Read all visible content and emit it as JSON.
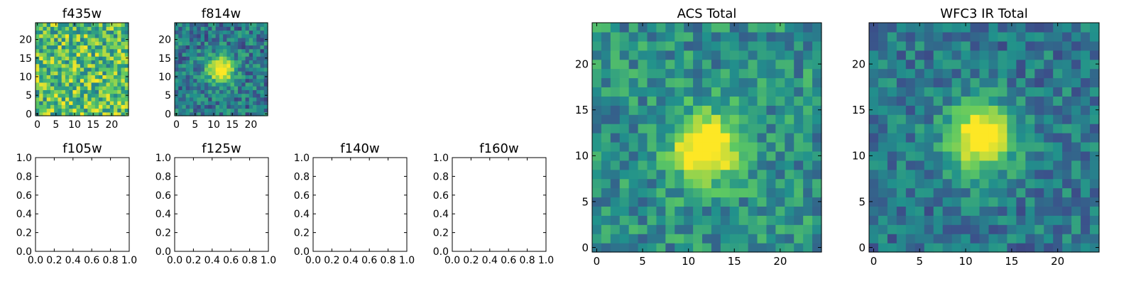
{
  "figure": {
    "colormap": "viridis",
    "colormap_stops": [
      "#440154",
      "#3b528b",
      "#21918c",
      "#5ec962",
      "#fde725"
    ]
  },
  "chart_data": [
    {
      "type": "heatmap",
      "title": "f435w",
      "grid_size": 25,
      "source_center": null,
      "source_peak": 0,
      "background_level": 0.7,
      "noise_level": 0.3,
      "xlim": [
        -0.5,
        24.5
      ],
      "ylim": [
        -0.5,
        24.5
      ],
      "xticks": [
        0,
        5,
        10,
        15,
        20
      ],
      "yticks": [
        0,
        5,
        10,
        15,
        20
      ],
      "xtick_labels": [
        "0",
        "5",
        "10",
        "15",
        "20"
      ],
      "ytick_labels": [
        "0",
        "5",
        "10",
        "15",
        "20"
      ]
    },
    {
      "type": "heatmap",
      "title": "f814w",
      "grid_size": 25,
      "source_center": [
        12,
        12
      ],
      "source_peak": 0.95,
      "background_level": 0.4,
      "noise_level": 0.22,
      "xlim": [
        -0.5,
        24.5
      ],
      "ylim": [
        -0.5,
        24.5
      ],
      "xticks": [
        0,
        5,
        10,
        15,
        20
      ],
      "yticks": [
        0,
        5,
        10,
        15,
        20
      ],
      "xtick_labels": [
        "0",
        "5",
        "10",
        "15",
        "20"
      ],
      "ytick_labels": [
        "0",
        "5",
        "10",
        "15",
        "20"
      ]
    },
    {
      "type": "empty",
      "title": "f105w",
      "xlim": [
        0,
        1
      ],
      "ylim": [
        0,
        1
      ],
      "xtick_labels": [
        "0.0",
        "0.2",
        "0.4",
        "0.6",
        "0.8",
        "1.0"
      ],
      "ytick_labels": [
        "0.0",
        "0.2",
        "0.4",
        "0.6",
        "0.8",
        "1.0"
      ]
    },
    {
      "type": "empty",
      "title": "f125w",
      "xlim": [
        0,
        1
      ],
      "ylim": [
        0,
        1
      ],
      "xtick_labels": [
        "0.0",
        "0.2",
        "0.4",
        "0.6",
        "0.8",
        "1.0"
      ],
      "ytick_labels": [
        "0.0",
        "0.2",
        "0.4",
        "0.6",
        "0.8",
        "1.0"
      ]
    },
    {
      "type": "empty",
      "title": "f140w",
      "xlim": [
        0,
        1
      ],
      "ylim": [
        0,
        1
      ],
      "xtick_labels": [
        "0.0",
        "0.2",
        "0.4",
        "0.6",
        "0.8",
        "1.0"
      ],
      "ytick_labels": [
        "0.0",
        "0.2",
        "0.4",
        "0.6",
        "0.8",
        "1.0"
      ]
    },
    {
      "type": "empty",
      "title": "f160w",
      "xlim": [
        0,
        1
      ],
      "ylim": [
        0,
        1
      ],
      "xtick_labels": [
        "0.0",
        "0.2",
        "0.4",
        "0.6",
        "0.8",
        "1.0"
      ],
      "ytick_labels": [
        "0.0",
        "0.2",
        "0.4",
        "0.6",
        "0.8",
        "1.0"
      ]
    },
    {
      "type": "heatmap",
      "title": "ACS Total",
      "grid_size": 25,
      "source_center": [
        12,
        11
      ],
      "source_peak": 0.95,
      "background_level": 0.5,
      "noise_level": 0.2,
      "xlim": [
        -0.5,
        24.5
      ],
      "ylim": [
        -0.5,
        24.5
      ],
      "xticks": [
        0,
        5,
        10,
        15,
        20
      ],
      "yticks": [
        0,
        5,
        10,
        15,
        20
      ],
      "xtick_labels": [
        "0",
        "5",
        "10",
        "15",
        "20"
      ],
      "ytick_labels": [
        "0",
        "5",
        "10",
        "15",
        "20"
      ]
    },
    {
      "type": "heatmap",
      "title": "WFC3 IR Total",
      "grid_size": 25,
      "source_center": [
        11.5,
        12
      ],
      "source_peak": 0.95,
      "background_level": 0.4,
      "noise_level": 0.18,
      "xlim": [
        -0.5,
        24.5
      ],
      "ylim": [
        -0.5,
        24.5
      ],
      "xticks": [
        0,
        5,
        10,
        15,
        20
      ],
      "yticks": [
        0,
        5,
        10,
        15,
        20
      ],
      "xtick_labels": [
        "0",
        "5",
        "10",
        "15",
        "20"
      ],
      "ytick_labels": [
        "0",
        "5",
        "10",
        "15",
        "20"
      ]
    }
  ]
}
